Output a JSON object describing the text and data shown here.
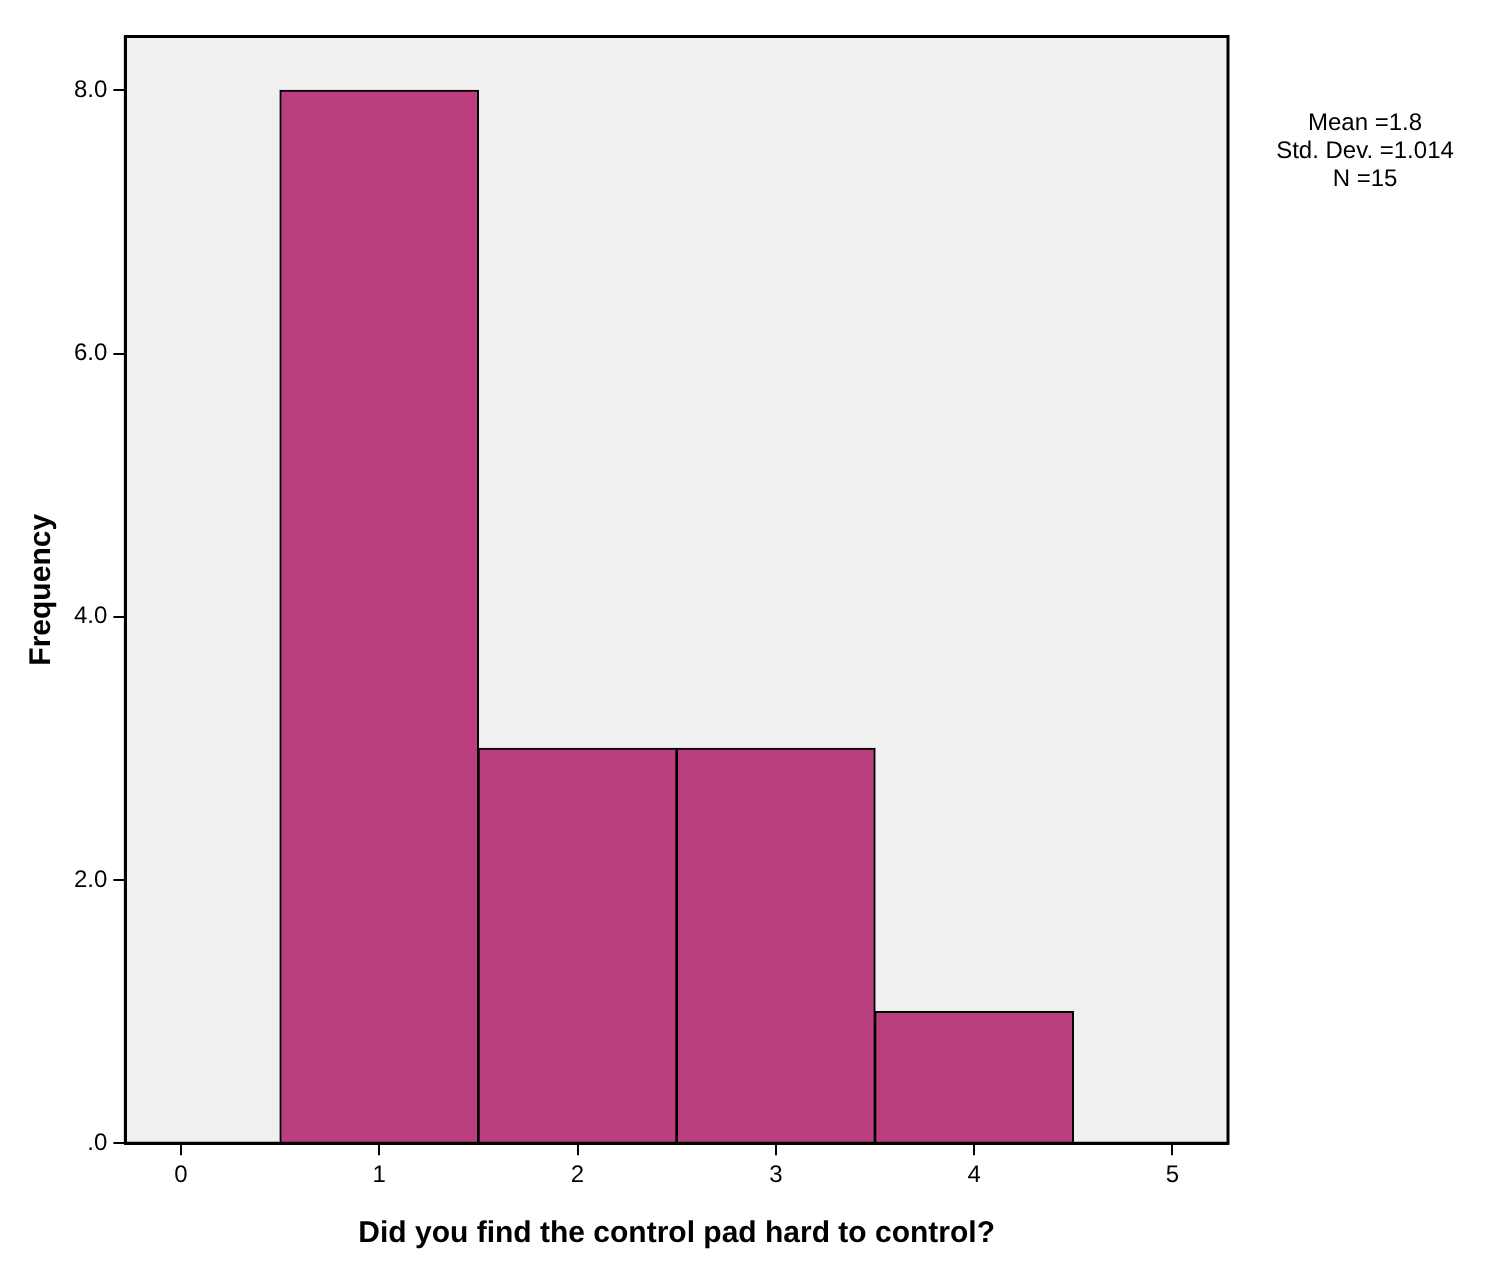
{
  "chart_data": {
    "type": "histogram",
    "xlabel": "Did you find the control pad hard to control?",
    "ylabel": "Frequency",
    "bins": [
      0.5,
      1.5,
      2.5,
      3.5,
      4.5
    ],
    "values": [
      8,
      3,
      3,
      1
    ],
    "color": "#bb3f7e",
    "xlim": [
      -0.28,
      5.28
    ],
    "xticks": [
      0,
      1,
      2,
      3,
      4,
      5
    ],
    "ylim": [
      0,
      8.41
    ],
    "yticks": [
      {
        "value": 0,
        "label": ".0"
      },
      {
        "value": 2,
        "label": "2.0"
      },
      {
        "value": 4,
        "label": "4.0"
      },
      {
        "value": 6,
        "label": "6.0"
      },
      {
        "value": 8,
        "label": "8.0"
      }
    ],
    "grid": false,
    "legend": false,
    "annotations": [
      "Mean =1.8",
      "Std. Dev. =1.014",
      "N =15"
    ]
  }
}
